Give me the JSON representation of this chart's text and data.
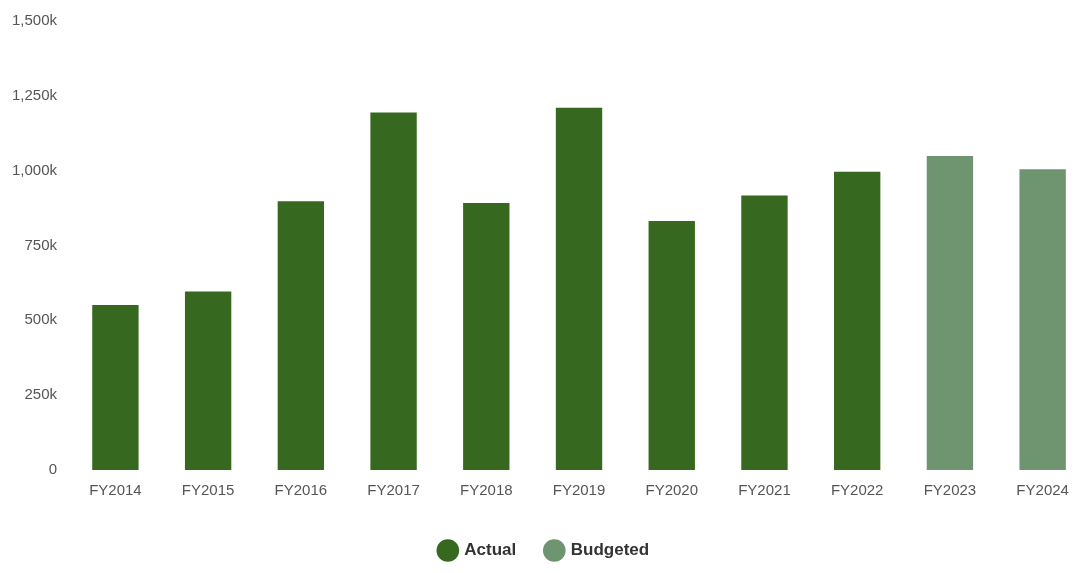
{
  "chart_data": {
    "type": "bar",
    "categories": [
      "FY2014",
      "FY2015",
      "FY2016",
      "FY2017",
      "FY2018",
      "FY2019",
      "FY2020",
      "FY2021",
      "FY2022",
      "FY2023",
      "FY2024"
    ],
    "series": [
      {
        "name": "Actual",
        "color": "#36681f",
        "values": [
          551000,
          596000,
          898000,
          1194000,
          892000,
          1210000,
          832000,
          917000,
          996000,
          null,
          null
        ]
      },
      {
        "name": "Budgeted",
        "color": "#6e9470",
        "values": [
          null,
          null,
          null,
          null,
          null,
          null,
          null,
          null,
          null,
          1049000,
          1005000
        ]
      }
    ],
    "ylim": [
      0,
      1500000
    ],
    "yticks": [
      {
        "value": 0,
        "label": "0"
      },
      {
        "value": 250000,
        "label": "250k"
      },
      {
        "value": 500000,
        "label": "500k"
      },
      {
        "value": 750000,
        "label": "750k"
      },
      {
        "value": 1000000,
        "label": "1,000k"
      },
      {
        "value": 1250000,
        "label": "1,250k"
      },
      {
        "value": 1500000,
        "label": "1,500k"
      }
    ],
    "grid": false,
    "legend": "bottom"
  }
}
